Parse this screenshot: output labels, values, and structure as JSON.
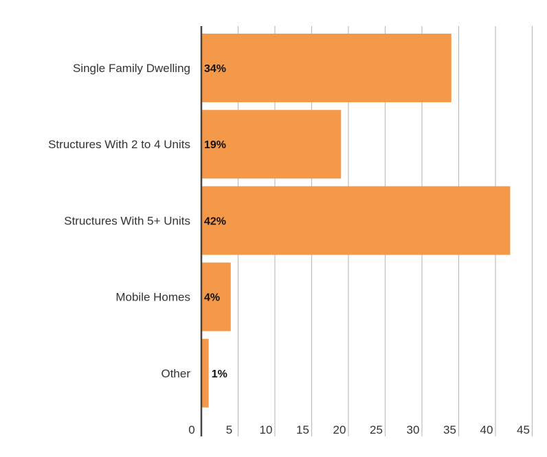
{
  "chart_data": {
    "type": "bar",
    "orientation": "horizontal",
    "categories": [
      "Single Family Dwelling",
      "Structures With 2 to 4 Units",
      "Structures With 5+ Units",
      "Mobile Homes",
      "Other"
    ],
    "values": [
      34,
      19,
      42,
      4,
      1
    ],
    "data_labels": [
      "34%",
      "19%",
      "42%",
      "4%",
      "1%"
    ],
    "x_ticks": [
      "0",
      "5",
      "10",
      "15",
      "20",
      "25",
      "30",
      "35",
      "40",
      "45"
    ],
    "xlim": [
      0,
      45
    ],
    "grid": true,
    "colors": {
      "bar": "#F4994A",
      "grid": "#BDBDBD",
      "axis": "#444444"
    }
  }
}
